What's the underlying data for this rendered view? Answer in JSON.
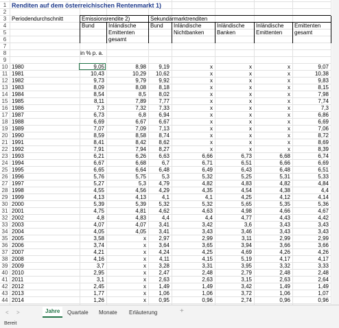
{
  "sheet": {
    "title": "Renditen auf dem österreichischen Rentenmarkt 1)",
    "period_label": "Periodendurchschnitt",
    "group_emission": "Emissionsrendite 2)",
    "group_secondary": "Sekundärmarktrenditen",
    "columns": [
      "Bund",
      "Inländische Emittenten gesamt",
      "Bund",
      "Inländische Nichtbanken",
      "Inländische Banken",
      "Inländische Emittenten",
      "Emittenten gesamt"
    ],
    "unit": "in % p. a.",
    "row_numbers": [
      1,
      2,
      3,
      4,
      5,
      6,
      7,
      8,
      9,
      10,
      11,
      12,
      13,
      14,
      15,
      16,
      17,
      18,
      19,
      20,
      21,
      22,
      23,
      24,
      25,
      26,
      27,
      28,
      29,
      30,
      31,
      32,
      33,
      34,
      35,
      36,
      37,
      38,
      39,
      40,
      41,
      42,
      43,
      44
    ],
    "rows": [
      [
        "1980",
        "9,05",
        "8,98",
        "9,19",
        "x",
        "x",
        "x",
        "9,07"
      ],
      [
        "1981",
        "10,43",
        "10,29",
        "10,62",
        "x",
        "x",
        "x",
        "10,38"
      ],
      [
        "1982",
        "9,73",
        "9,79",
        "9,92",
        "x",
        "x",
        "x",
        "9,83"
      ],
      [
        "1983",
        "8,09",
        "8,08",
        "8,18",
        "x",
        "x",
        "x",
        "8,15"
      ],
      [
        "1984",
        "8,54",
        "8,5",
        "8,02",
        "x",
        "x",
        "x",
        "7,98"
      ],
      [
        "1985",
        "8,11",
        "7,89",
        "7,77",
        "x",
        "x",
        "x",
        "7,74"
      ],
      [
        "1986",
        "7,3",
        "7,32",
        "7,33",
        "x",
        "x",
        "x",
        "7,3"
      ],
      [
        "1987",
        "6,73",
        "6,8",
        "6,94",
        "x",
        "x",
        "x",
        "6,86"
      ],
      [
        "1988",
        "6,69",
        "6,67",
        "6,67",
        "x",
        "x",
        "x",
        "6,69"
      ],
      [
        "1989",
        "7,07",
        "7,09",
        "7,13",
        "x",
        "x",
        "x",
        "7,06"
      ],
      [
        "1990",
        "8,59",
        "8,58",
        "8,74",
        "x",
        "x",
        "x",
        "8,72"
      ],
      [
        "1991",
        "8,41",
        "8,42",
        "8,62",
        "x",
        "x",
        "x",
        "8,69"
      ],
      [
        "1992",
        "7,91",
        "7,94",
        "8,27",
        "x",
        "x",
        "x",
        "8,39"
      ],
      [
        "1993",
        "6,21",
        "6,26",
        "6,63",
        "6,66",
        "6,73",
        "6,68",
        "6,74"
      ],
      [
        "1994",
        "6,67",
        "6,68",
        "6,7",
        "6,71",
        "6,51",
        "6,66",
        "6,69"
      ],
      [
        "1995",
        "6,65",
        "6,64",
        "6,48",
        "6,49",
        "6,43",
        "6,48",
        "6,51"
      ],
      [
        "1996",
        "5,76",
        "5,75",
        "5,3",
        "5,32",
        "5,25",
        "5,31",
        "5,33"
      ],
      [
        "1997",
        "5,27",
        "5,3",
        "4,79",
        "4,82",
        "4,83",
        "4,82",
        "4,84"
      ],
      [
        "1998",
        "4,55",
        "4,56",
        "4,29",
        "4,35",
        "4,54",
        "4,38",
        "4,4"
      ],
      [
        "1999",
        "4,13",
        "4,13",
        "4,1",
        "4,1",
        "4,25",
        "4,12",
        "4,14"
      ],
      [
        "2000",
        "5,39",
        "5,39",
        "5,32",
        "5,32",
        "5,65",
        "5,35",
        "5,36"
      ],
      [
        "2001",
        "4,75",
        "4,81",
        "4,62",
        "4,63",
        "4,98",
        "4,66",
        "4,67"
      ],
      [
        "2002",
        "4,8",
        "4,83",
        "4,4",
        "4,4",
        "4,77",
        "4,43",
        "4,42"
      ],
      [
        "2003",
        "4,07",
        "4,07",
        "3,41",
        "3,42",
        "3,6",
        "3,43",
        "3,43"
      ],
      [
        "2004",
        "4,05",
        "4,05",
        "3,41",
        "3,43",
        "3,46",
        "3,43",
        "3,43"
      ],
      [
        "2005",
        "3,58",
        "x",
        "2,97",
        "2,99",
        "3,11",
        "2,99",
        "2,99"
      ],
      [
        "2006",
        "3,74",
        "x",
        "3,64",
        "3,65",
        "3,94",
        "3,66",
        "3,66"
      ],
      [
        "2007",
        "4,21",
        "x",
        "4,24",
        "4,25",
        "4,69",
        "4,26",
        "4,26"
      ],
      [
        "2008",
        "4,16",
        "x",
        "4,11",
        "4,15",
        "5,19",
        "4,17",
        "4,17"
      ],
      [
        "2009",
        "3,7",
        "x",
        "3,28",
        "3,31",
        "3,95",
        "3,32",
        "3,33"
      ],
      [
        "2010",
        "2,95",
        "x",
        "2,47",
        "2,48",
        "2,79",
        "2,48",
        "2,48"
      ],
      [
        "2011",
        "3,1",
        "x",
        "2,63",
        "2,63",
        "3,15",
        "2,63",
        "2,64"
      ],
      [
        "2012",
        "2,45",
        "x",
        "1,49",
        "1,49",
        "3,42",
        "1,49",
        "1,49"
      ],
      [
        "2013",
        "1,77",
        "x",
        "1,06",
        "1,06",
        "3,72",
        "1,06",
        "1,07"
      ],
      [
        "2014",
        "1,26",
        "x",
        "0,95",
        "0,96",
        "2,74",
        "0,96",
        "0,96"
      ]
    ]
  },
  "tabs": [
    "Jahre",
    "Quartale",
    "Monate",
    "Erläuterung"
  ],
  "active_tab": 0,
  "status": "Bereit"
}
